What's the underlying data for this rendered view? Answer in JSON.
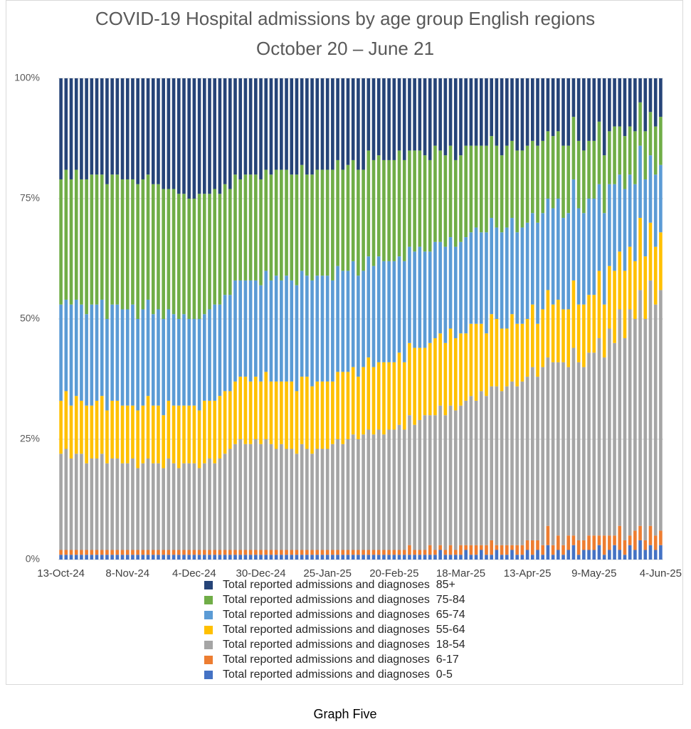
{
  "chart_data": {
    "type": "stacked-bar-100",
    "title": "COVID-19 Hospital admissions by age group English regions",
    "subtitle": "October 20 – June 21",
    "categories": [
      "13-Oct-24",
      null,
      null,
      null,
      null,
      null,
      null,
      null,
      null,
      null,
      null,
      null,
      null,
      "8-Nov-24",
      null,
      null,
      null,
      null,
      null,
      null,
      null,
      null,
      null,
      null,
      null,
      null,
      "4-Dec-24",
      null,
      null,
      null,
      null,
      null,
      null,
      null,
      null,
      null,
      null,
      null,
      null,
      "30-Dec-24",
      null,
      null,
      null,
      null,
      null,
      null,
      null,
      null,
      null,
      null,
      null,
      null,
      "25-Jan-25",
      null,
      null,
      null,
      null,
      null,
      null,
      null,
      null,
      null,
      null,
      null,
      null,
      "20-Feb-25",
      null,
      null,
      null,
      null,
      null,
      null,
      null,
      null,
      null,
      null,
      null,
      null,
      "18-Mar-25",
      null,
      null,
      null,
      null,
      null,
      null,
      null,
      null,
      null,
      null,
      null,
      null,
      "13-Apr-25",
      null,
      null,
      null,
      null,
      null,
      null,
      null,
      null,
      null,
      null,
      null,
      null,
      "9-May-25",
      null,
      null,
      null,
      null,
      null,
      null,
      null,
      null,
      null,
      null,
      null,
      null,
      "4-Jun-25"
    ],
    "ylim": [
      0,
      100
    ],
    "yticks": [
      {
        "value": 0,
        "label": "0%"
      },
      {
        "value": 25,
        "label": "25%"
      },
      {
        "value": 50,
        "label": "50%"
      },
      {
        "value": 75,
        "label": "75%"
      },
      {
        "value": 100,
        "label": "100%"
      }
    ],
    "grid": true,
    "legend": "bottom",
    "series": [
      {
        "name": "Total reported admissions and diagnoses  0-5",
        "color": "#4472c4",
        "values": [
          1,
          1,
          1,
          1,
          1,
          1,
          1,
          1,
          1,
          1,
          1,
          1,
          1,
          1,
          1,
          1,
          1,
          1,
          1,
          1,
          1,
          1,
          1,
          1,
          1,
          1,
          1,
          1,
          1,
          1,
          1,
          1,
          1,
          1,
          1,
          1,
          1,
          1,
          1,
          1,
          1,
          1,
          1,
          1,
          1,
          1,
          1,
          1,
          1,
          1,
          1,
          1,
          1,
          1,
          1,
          1,
          1,
          1,
          1,
          1,
          1,
          1,
          1,
          1,
          1,
          1,
          1,
          1,
          1,
          1,
          1,
          1,
          1,
          1,
          2,
          1,
          1,
          1,
          1,
          2,
          1,
          1,
          2,
          1,
          1,
          2,
          1,
          1,
          2,
          1,
          1,
          2,
          1,
          2,
          1,
          3,
          1,
          2,
          1,
          2,
          3,
          1,
          2,
          2,
          2,
          3,
          1,
          2,
          3,
          2,
          1,
          3,
          2,
          4,
          2,
          3,
          2,
          3
        ]
      },
      {
        "name": "Total reported admissions and diagnoses  6-17",
        "color": "#ed7d31",
        "values": [
          1,
          1,
          1,
          1,
          1,
          1,
          1,
          1,
          1,
          1,
          1,
          1,
          1,
          1,
          1,
          1,
          1,
          1,
          1,
          1,
          1,
          1,
          1,
          1,
          1,
          1,
          1,
          1,
          1,
          1,
          1,
          1,
          1,
          1,
          1,
          1,
          1,
          1,
          1,
          1,
          1,
          1,
          1,
          1,
          1,
          1,
          1,
          1,
          1,
          1,
          1,
          1,
          1,
          1,
          1,
          1,
          1,
          1,
          1,
          1,
          1,
          1,
          1,
          1,
          1,
          1,
          1,
          1,
          2,
          1,
          1,
          1,
          2,
          1,
          1,
          1,
          2,
          1,
          2,
          1,
          2,
          2,
          1,
          2,
          3,
          1,
          2,
          2,
          1,
          2,
          2,
          2,
          3,
          2,
          2,
          4,
          2,
          3,
          2,
          3,
          2,
          3,
          2,
          3,
          3,
          2,
          4,
          3,
          2,
          5,
          3,
          2,
          4,
          3,
          2,
          4,
          3,
          3
        ]
      },
      {
        "name": "Total reported admissions and diagnoses  18-54",
        "color": "#a5a5a5",
        "values": [
          20,
          21,
          19,
          20,
          20,
          18,
          19,
          19,
          20,
          18,
          19,
          19,
          18,
          18,
          19,
          17,
          18,
          19,
          18,
          18,
          17,
          19,
          18,
          17,
          18,
          18,
          18,
          17,
          18,
          19,
          18,
          19,
          20,
          21,
          22,
          23,
          22,
          22,
          23,
          22,
          23,
          22,
          21,
          22,
          21,
          21,
          20,
          22,
          21,
          20,
          21,
          21,
          21,
          22,
          23,
          22,
          23,
          24,
          23,
          24,
          25,
          24,
          25,
          24,
          25,
          25,
          26,
          25,
          27,
          26,
          27,
          28,
          27,
          28,
          29,
          28,
          29,
          29,
          29,
          30,
          31,
          30,
          32,
          31,
          32,
          33,
          32,
          33,
          34,
          33,
          34,
          34,
          36,
          34,
          37,
          35,
          38,
          36,
          38,
          35,
          39,
          37,
          36,
          38,
          38,
          41,
          37,
          43,
          40,
          45,
          42,
          47,
          44,
          49,
          46,
          51,
          48,
          50
        ]
      },
      {
        "name": "Total reported admissions and diagnoses  55-64",
        "color": "#ffc000",
        "values": [
          11,
          12,
          11,
          12,
          11,
          12,
          11,
          12,
          12,
          11,
          12,
          12,
          12,
          12,
          11,
          12,
          12,
          13,
          12,
          12,
          11,
          12,
          12,
          13,
          12,
          12,
          12,
          12,
          13,
          12,
          13,
          13,
          13,
          12,
          13,
          13,
          14,
          13,
          13,
          13,
          14,
          13,
          14,
          13,
          14,
          14,
          13,
          14,
          15,
          14,
          14,
          14,
          14,
          13,
          14,
          15,
          14,
          14,
          13,
          14,
          15,
          14,
          14,
          15,
          14,
          14,
          15,
          14,
          15,
          16,
          15,
          14,
          15,
          16,
          15,
          15,
          16,
          15,
          15,
          14,
          15,
          16,
          14,
          13,
          15,
          14,
          13,
          12,
          14,
          13,
          12,
          12,
          13,
          11,
          12,
          14,
          12,
          13,
          11,
          12,
          14,
          12,
          13,
          12,
          12,
          14,
          11,
          13,
          15,
          12,
          14,
          13,
          12,
          15,
          13,
          12,
          12,
          12
        ]
      },
      {
        "name": "Total reported admissions and diagnoses  65-74",
        "color": "#5b9bd5",
        "values": [
          20,
          19,
          21,
          20,
          20,
          19,
          21,
          20,
          20,
          19,
          20,
          20,
          20,
          20,
          21,
          19,
          20,
          20,
          19,
          20,
          20,
          19,
          19,
          18,
          19,
          18,
          18,
          19,
          18,
          19,
          20,
          19,
          20,
          20,
          21,
          20,
          20,
          21,
          20,
          20,
          21,
          21,
          22,
          21,
          22,
          21,
          22,
          22,
          21,
          22,
          22,
          22,
          22,
          21,
          22,
          21,
          21,
          22,
          21,
          20,
          21,
          21,
          22,
          21,
          21,
          21,
          20,
          21,
          20,
          20,
          21,
          20,
          19,
          20,
          19,
          20,
          19,
          19,
          19,
          20,
          19,
          20,
          19,
          21,
          20,
          19,
          20,
          21,
          20,
          19,
          20,
          20,
          19,
          21,
          20,
          19,
          20,
          21,
          19,
          20,
          21,
          20,
          19,
          20,
          20,
          18,
          19,
          17,
          18,
          16,
          17,
          15,
          16,
          15,
          16,
          14,
          15,
          14
        ]
      },
      {
        "name": "Total reported admissions and diagnoses  75-84",
        "color": "#70ad47",
        "values": [
          26,
          27,
          26,
          27,
          26,
          28,
          27,
          27,
          26,
          28,
          27,
          27,
          27,
          27,
          26,
          28,
          27,
          26,
          27,
          26,
          27,
          25,
          26,
          26,
          25,
          25,
          25,
          26,
          25,
          24,
          24,
          23,
          23,
          22,
          22,
          21,
          22,
          22,
          22,
          22,
          21,
          22,
          22,
          23,
          22,
          22,
          23,
          22,
          21,
          22,
          22,
          22,
          22,
          23,
          22,
          21,
          22,
          21,
          22,
          21,
          22,
          22,
          21,
          21,
          21,
          21,
          22,
          21,
          20,
          21,
          20,
          20,
          19,
          20,
          19,
          19,
          19,
          18,
          18,
          19,
          18,
          17,
          18,
          18,
          17,
          17,
          16,
          17,
          16,
          17,
          16,
          16,
          15,
          16,
          15,
          14,
          15,
          14,
          15,
          14,
          13,
          14,
          13,
          12,
          12,
          13,
          12,
          11,
          12,
          10,
          11,
          10,
          11,
          9,
          10,
          9,
          10,
          10
        ]
      },
      {
        "name": "Total reported admissions and diagnoses  85+",
        "color": "#264478",
        "values": [
          21,
          19,
          21,
          19,
          21,
          21,
          20,
          20,
          20,
          22,
          20,
          20,
          21,
          21,
          21,
          22,
          21,
          20,
          22,
          22,
          23,
          23,
          23,
          24,
          24,
          25,
          25,
          24,
          24,
          24,
          23,
          24,
          22,
          23,
          20,
          21,
          20,
          20,
          20,
          21,
          19,
          20,
          19,
          19,
          19,
          20,
          20,
          18,
          20,
          20,
          19,
          19,
          19,
          19,
          17,
          19,
          18,
          17,
          19,
          19,
          15,
          17,
          16,
          17,
          17,
          17,
          15,
          17,
          15,
          15,
          15,
          16,
          17,
          14,
          15,
          16,
          14,
          17,
          16,
          14,
          14,
          14,
          14,
          14,
          12,
          14,
          16,
          14,
          13,
          15,
          15,
          14,
          13,
          14,
          13,
          11,
          12,
          11,
          14,
          14,
          8,
          13,
          15,
          13,
          13,
          9,
          16,
          11,
          10,
          10,
          12,
          10,
          11,
          5,
          11,
          7,
          10,
          8
        ]
      }
    ]
  },
  "caption": "Graph Five"
}
